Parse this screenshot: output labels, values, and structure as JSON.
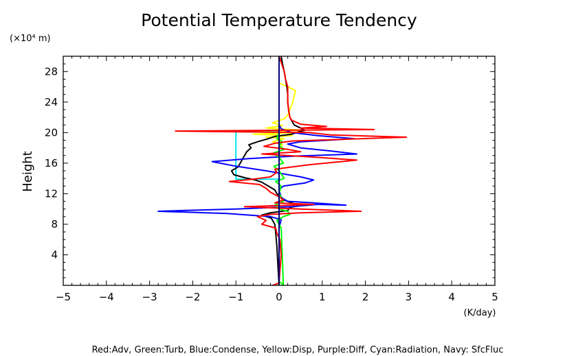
{
  "chart_data": {
    "type": "line",
    "title": "Potential Temperature Tendency",
    "ylabel": "Height",
    "yunit_label": "(×10⁴ m)",
    "xunit_label": "(K/day)",
    "xlim": [
      -5,
      5
    ],
    "ylim": [
      0,
      30
    ],
    "xticks": [
      -5,
      -4,
      -3,
      -2,
      -1,
      0,
      1,
      2,
      3,
      4,
      5
    ],
    "xtick_labels": [
      "−5",
      "−4",
      "−3",
      "−2",
      "−1",
      "0",
      "1",
      "2",
      "3",
      "4",
      "5"
    ],
    "yticks": [
      4,
      8,
      12,
      16,
      20,
      24,
      28
    ],
    "ytick_labels": [
      "4",
      "8",
      "12",
      "16",
      "20",
      "24",
      "28"
    ],
    "grid": false,
    "caption": "Red:Adv, Green:Turb, Blue:Condense, Yellow:Disp, Purple:Diff, Cyan:Radiation, Navy: SfcFluc",
    "series": [
      {
        "key": "yellow",
        "color": "#ffff00",
        "points": [
          [
            0,
            0
          ],
          [
            0,
            18
          ],
          [
            0.08,
            18.4
          ],
          [
            -0.15,
            18.8
          ],
          [
            0.12,
            19.2
          ],
          [
            -0.3,
            19.4
          ],
          [
            0.3,
            19.6
          ],
          [
            -0.6,
            19.8
          ],
          [
            0.5,
            20
          ],
          [
            -0.85,
            20.1
          ],
          [
            0.6,
            20.3
          ],
          [
            -0.3,
            20.6
          ],
          [
            0.08,
            20.9
          ],
          [
            -0.15,
            21.3
          ],
          [
            0.12,
            21.8
          ],
          [
            0.2,
            22.3
          ],
          [
            0.25,
            23
          ],
          [
            0.32,
            24
          ],
          [
            0.38,
            25.5
          ],
          [
            0.2,
            26
          ],
          [
            0,
            26.5
          ],
          [
            0,
            30
          ]
        ]
      },
      {
        "key": "cyan",
        "color": "#00e5ee",
        "points": [
          [
            0,
            13.9
          ],
          [
            -1,
            13.9
          ],
          [
            -1,
            16.6
          ],
          [
            -1,
            20.1
          ],
          [
            -0.1,
            20.1
          ],
          [
            0,
            20.1
          ]
        ]
      },
      {
        "key": "black",
        "color": "#000000",
        "points": [
          [
            0,
            0
          ],
          [
            -0.02,
            2
          ],
          [
            -0.05,
            5
          ],
          [
            -0.08,
            7
          ],
          [
            -0.1,
            8
          ],
          [
            -0.18,
            8.8
          ],
          [
            -0.4,
            9.2
          ],
          [
            -0.2,
            9.5
          ],
          [
            0.2,
            9.8
          ],
          [
            0.25,
            10.2
          ],
          [
            0.45,
            10.4
          ],
          [
            0.3,
            10.8
          ],
          [
            0.1,
            11.2
          ],
          [
            0.05,
            11.6
          ],
          [
            -0.05,
            12
          ],
          [
            -0.1,
            12.5
          ],
          [
            -0.25,
            13
          ],
          [
            -0.4,
            13.5
          ],
          [
            -0.55,
            13.8
          ],
          [
            -0.8,
            14.1
          ],
          [
            -1.05,
            14.5
          ],
          [
            -1.1,
            15
          ],
          [
            -0.95,
            15.5
          ],
          [
            -0.9,
            16
          ],
          [
            -0.85,
            16.5
          ],
          [
            -0.8,
            17
          ],
          [
            -0.75,
            17.5
          ],
          [
            -0.65,
            18
          ],
          [
            -0.7,
            18.4
          ],
          [
            -0.5,
            18.8
          ],
          [
            -0.25,
            19.2
          ],
          [
            -0.1,
            19.5
          ],
          [
            0.3,
            19.8
          ],
          [
            0.45,
            20.1
          ],
          [
            0.6,
            20.3
          ],
          [
            0.5,
            20.6
          ],
          [
            0.35,
            21
          ],
          [
            0.3,
            21.5
          ],
          [
            0.25,
            22
          ],
          [
            0.22,
            23
          ],
          [
            0.2,
            24
          ],
          [
            0.2,
            25
          ],
          [
            0.18,
            26
          ],
          [
            0.15,
            27
          ],
          [
            0.12,
            28
          ],
          [
            0.08,
            29
          ],
          [
            0.05,
            30
          ]
        ]
      },
      {
        "key": "blue",
        "color": "#0000ff",
        "points": [
          [
            0,
            0
          ],
          [
            0,
            7.5
          ],
          [
            0.05,
            8.6
          ],
          [
            -0.2,
            9
          ],
          [
            -1.2,
            9.4
          ],
          [
            -2.8,
            9.7
          ],
          [
            -1,
            10
          ],
          [
            0.3,
            10.3
          ],
          [
            0.9,
            10.6
          ],
          [
            1.55,
            10.5
          ],
          [
            0.8,
            10.8
          ],
          [
            0.2,
            11
          ],
          [
            0.05,
            11.5
          ],
          [
            0,
            12.5
          ],
          [
            0.1,
            13
          ],
          [
            0.6,
            13.4
          ],
          [
            0.8,
            13.8
          ],
          [
            0.5,
            14.2
          ],
          [
            0.1,
            14.6
          ],
          [
            -0.3,
            15
          ],
          [
            -1,
            15.6
          ],
          [
            -1.55,
            16.2
          ],
          [
            -0.7,
            16.6
          ],
          [
            0.3,
            16.9
          ],
          [
            1.8,
            17.2
          ],
          [
            1.2,
            17.6
          ],
          [
            0.5,
            18
          ],
          [
            0.2,
            18.5
          ],
          [
            0.5,
            18.8
          ],
          [
            1.1,
            19
          ],
          [
            1.75,
            19.2
          ],
          [
            0.9,
            19.6
          ],
          [
            0.3,
            20
          ],
          [
            0.05,
            20.5
          ],
          [
            0,
            21
          ],
          [
            0,
            30
          ]
        ]
      },
      {
        "key": "green",
        "color": "#00ff00",
        "points": [
          [
            0,
            0.5
          ],
          [
            0.05,
            0.3
          ],
          [
            0.1,
            0
          ],
          [
            0.05,
            7.5
          ],
          [
            -0.05,
            8.5
          ],
          [
            0.1,
            9
          ],
          [
            0.25,
            9.3
          ],
          [
            0.2,
            9.7
          ],
          [
            0,
            10
          ],
          [
            -0.1,
            10.5
          ],
          [
            0.1,
            11
          ],
          [
            0,
            12
          ],
          [
            0.05,
            13
          ],
          [
            -0.08,
            13.6
          ],
          [
            0.12,
            14
          ],
          [
            0,
            15
          ],
          [
            -0.12,
            15.6
          ],
          [
            0.1,
            16
          ],
          [
            0,
            16.8
          ],
          [
            -0.15,
            17.3
          ],
          [
            0.12,
            17.8
          ],
          [
            0,
            18.3
          ],
          [
            0.08,
            18.8
          ],
          [
            -0.05,
            19.2
          ],
          [
            0,
            20
          ],
          [
            0,
            30
          ]
        ]
      },
      {
        "key": "red",
        "color": "#ff0000",
        "points": [
          [
            -0.15,
            0
          ],
          [
            0,
            0.3
          ],
          [
            0.02,
            2
          ],
          [
            0.05,
            4
          ],
          [
            0.02,
            6
          ],
          [
            -0.05,
            6.8
          ],
          [
            -0.08,
            7.5
          ],
          [
            -0.4,
            8
          ],
          [
            -0.3,
            8.5
          ],
          [
            -0.5,
            9
          ],
          [
            -0.2,
            9.3
          ],
          [
            0.5,
            9.5
          ],
          [
            1.9,
            9.7
          ],
          [
            0.5,
            10
          ],
          [
            -0.8,
            10.3
          ],
          [
            0.8,
            10.6
          ],
          [
            -0.1,
            10.8
          ],
          [
            0.1,
            11.2
          ],
          [
            0,
            11.6
          ],
          [
            -0.2,
            12.2
          ],
          [
            -0.3,
            12.7
          ],
          [
            -0.45,
            13.2
          ],
          [
            -1.15,
            13.6
          ],
          [
            -0.6,
            13.9
          ],
          [
            -0.2,
            14.2
          ],
          [
            -0.05,
            14.8
          ],
          [
            -0.1,
            15.2
          ],
          [
            0.3,
            15.5
          ],
          [
            0.7,
            15.8
          ],
          [
            1.8,
            16.4
          ],
          [
            0.8,
            16.8
          ],
          [
            -0.4,
            17.2
          ],
          [
            0.5,
            17.5
          ],
          [
            0.2,
            17.8
          ],
          [
            -0.35,
            18.2
          ],
          [
            -0.1,
            18.6
          ],
          [
            0.3,
            18.9
          ],
          [
            2.95,
            19.4
          ],
          [
            1.2,
            19.7
          ],
          [
            0.7,
            20
          ],
          [
            -2.4,
            20.2
          ],
          [
            2.2,
            20.4
          ],
          [
            0.5,
            20.6
          ],
          [
            1.1,
            20.8
          ],
          [
            0.5,
            21.1
          ],
          [
            0.3,
            21.6
          ],
          [
            0.25,
            22
          ],
          [
            0.22,
            23
          ],
          [
            0.2,
            24
          ],
          [
            0.2,
            25
          ],
          [
            0.2,
            26
          ],
          [
            0.15,
            27
          ],
          [
            0.12,
            28
          ],
          [
            0.05,
            29.2
          ],
          [
            0,
            30
          ]
        ]
      }
    ]
  }
}
